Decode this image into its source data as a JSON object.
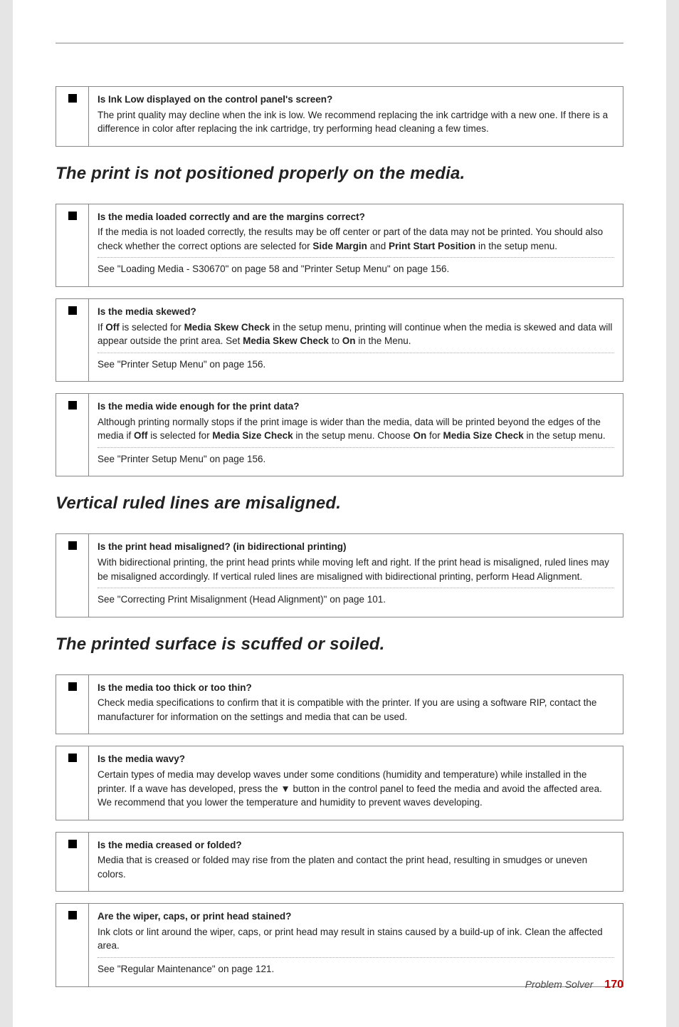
{
  "blocks": {
    "inkLow": {
      "q": "Is Ink Low displayed on the control panel's screen?",
      "p": "The print quality may decline when the ink is low. We recommend replacing the ink cartridge with a new one. If there is a difference in color after replacing the ink cartridge, try performing head cleaning a few times."
    },
    "mediaLoaded": {
      "q": "Is the media loaded correctly and are the margins correct?",
      "p_pre": "If the media is not loaded correctly, the results may be off center or part of the data may not be printed. You should also check whether the correct options are selected for ",
      "b1": "Side Margin",
      "mid": " and ",
      "b2": "Print Start Position",
      "post": " in the setup menu.",
      "see": "See  \"Loading Media - S30670\" on page 58 and \"Printer Setup Menu\" on page 156."
    },
    "mediaSkewed": {
      "q": "Is the media skewed?",
      "pre": "If ",
      "b1": "Off",
      "m1": " is selected for ",
      "b2": "Media Skew Check",
      "m2": " in the setup menu, printing will continue when the media is skewed and data will appear outside the print area. Set ",
      "b3": "Media Skew Check",
      "m3": " to ",
      "b4": "On",
      "post": " in the Menu.",
      "see": "See  \"Printer Setup Menu\" on page 156."
    },
    "mediaWide": {
      "q": "Is the media wide enough for the print data?",
      "pre": "Although printing normally stops if the print image is wider than the media, data will be printed beyond the edges of the media if ",
      "b1": "Off",
      "m1": " is selected for ",
      "b2": "Media Size Check",
      "m2": " in the setup menu. Choose ",
      "b3": "On",
      "m3": " for ",
      "b4": "Media Size Check",
      "post": " in the setup menu.",
      "see": "See  \"Printer Setup Menu\" on page 156."
    },
    "headMisaligned": {
      "q": "Is the print head misaligned? (in bidirectional printing)",
      "p": "With bidirectional printing, the print head prints while moving left and right. If the print head is misaligned, ruled lines may be misaligned accordingly. If vertical ruled lines are misaligned with bidirectional printing, perform Head Alignment.",
      "see": "See  \"Correcting Print Misalignment (Head Alignment)\" on page 101."
    },
    "tooThick": {
      "q": "Is the media too thick or too thin?",
      "p": "Check media specifications to confirm that it is compatible with the printer. If you are using a software RIP, contact the manufacturer for information on the settings and media that can be used."
    },
    "wavy": {
      "q": "Is the media wavy?",
      "p": "Certain types of media may develop waves under some conditions (humidity and temperature) while installed in the printer. If a wave has developed, press the ▼ button in the control panel to feed the media and avoid the affected area. We recommend that you lower the temperature and humidity to prevent waves developing."
    },
    "creased": {
      "q": "Is the media creased or folded?",
      "p": "Media that is creased or folded may rise from the platen and contact the print head, resulting in smudges or uneven colors."
    },
    "stained": {
      "q": "Are the wiper, caps, or print head stained?",
      "p": "Ink clots or lint around the wiper, caps, or print head may result in stains caused by a build-up of ink. Clean the affected area.",
      "see": "See  \"Regular Maintenance\" on page 121."
    }
  },
  "headings": {
    "h1": "The print is not positioned properly on the media.",
    "h2": "Vertical ruled lines are misaligned.",
    "h3": "The printed surface is scuffed or soiled."
  },
  "footer": {
    "label": "Problem Solver",
    "page": "170"
  }
}
